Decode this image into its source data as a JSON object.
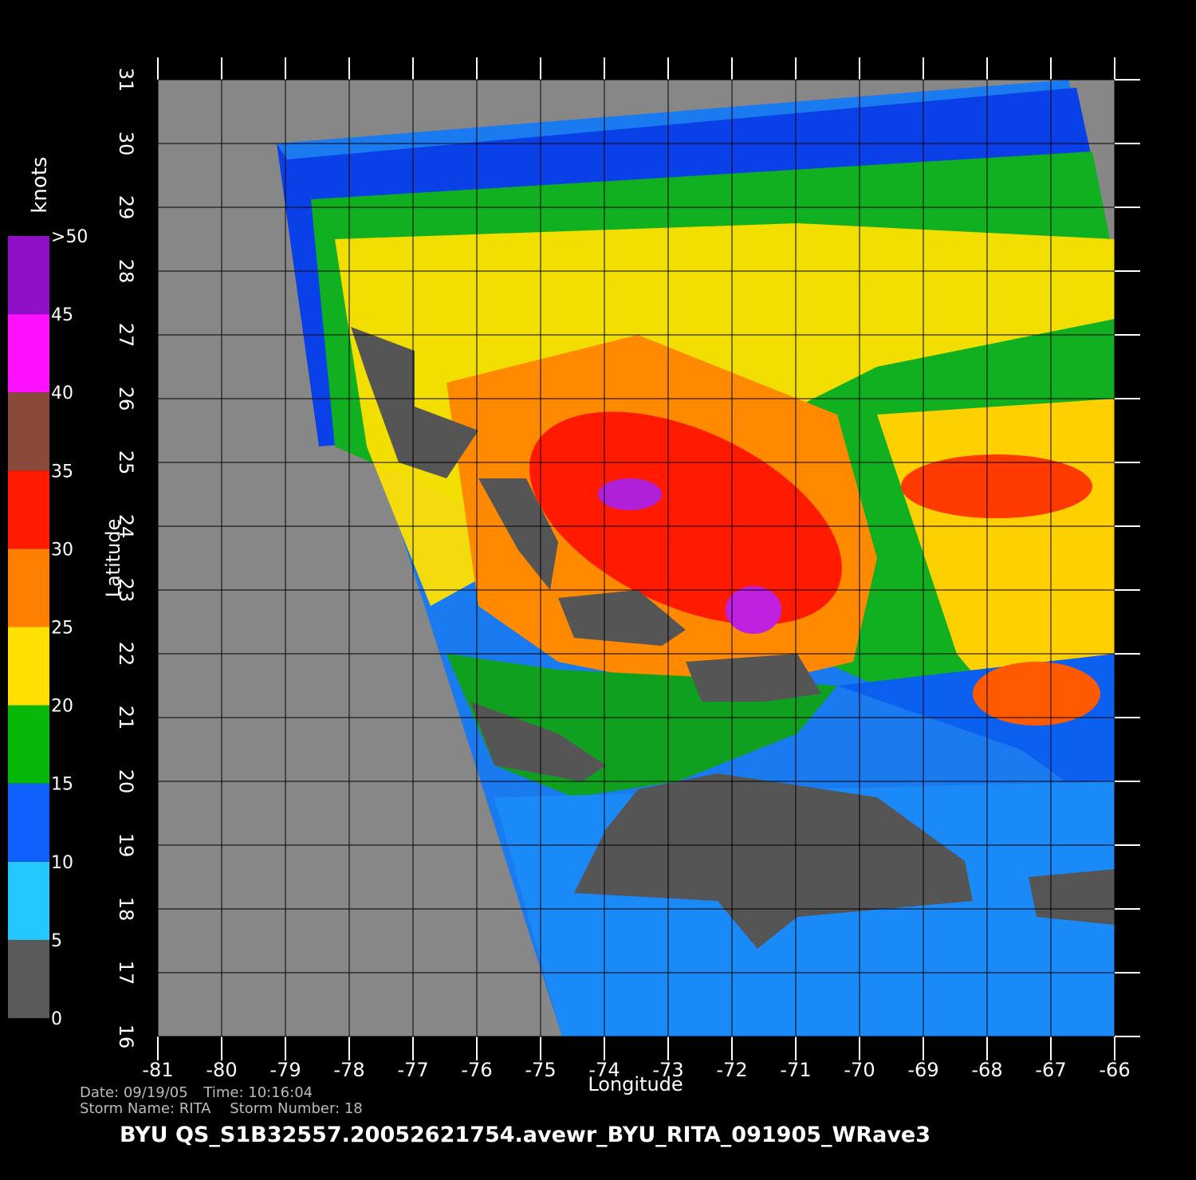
{
  "map": {
    "xlabel": "Longitude",
    "ylabel": "Latitude",
    "xlim": [
      -81,
      -66
    ],
    "ylim": [
      16,
      31
    ],
    "xticks": [
      -81,
      -80,
      -79,
      -78,
      -77,
      -76,
      -75,
      -74,
      -73,
      -72,
      -71,
      -70,
      -69,
      -68,
      -67,
      -66
    ],
    "yticks": [
      16,
      17,
      18,
      19,
      20,
      21,
      22,
      23,
      24,
      25,
      26,
      27,
      28,
      29,
      30,
      31
    ],
    "grid": true
  },
  "colorbar": {
    "unit": "knots",
    "ticks": [
      0,
      5,
      10,
      15,
      20,
      25,
      30,
      35,
      40,
      45,
      {
        "value": 50,
        "label": ">50"
      }
    ],
    "colors": [
      "#5a5a5a",
      "#22c8ff",
      "#1060ff",
      "#08b808",
      "#ffe000",
      "#ff8000",
      "#ff1a00",
      "#8a4a3a",
      "#ff10ff",
      "#9010c8"
    ]
  },
  "footer": {
    "date_label": "Date:",
    "date": "09/19/05",
    "time_label": "Time:",
    "time": "10:16:04",
    "storm_name_label": "Storm Name:",
    "storm_name": "RITA",
    "storm_number_label": "Storm Number:",
    "storm_number": 18
  },
  "title": "BYU  QS_S1B32557.20052621754.avewr_BYU_RITA_091905_WRave3"
}
